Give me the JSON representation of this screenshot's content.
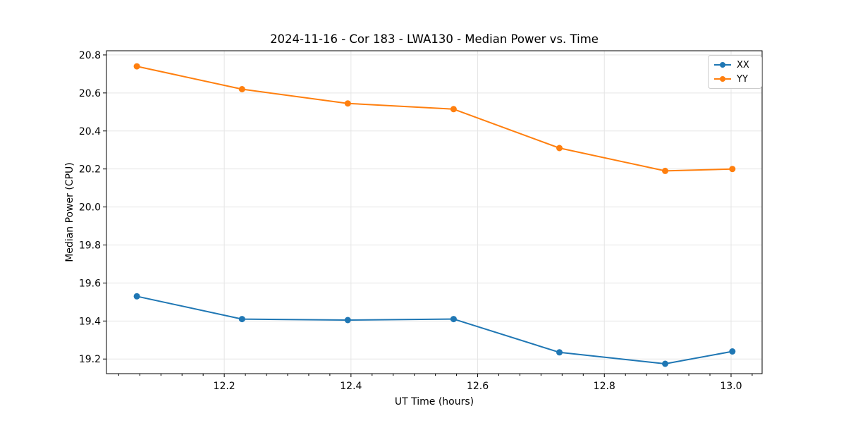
{
  "chart_data": {
    "type": "line",
    "title": "2024-11-16 - Cor 183 - LWA130 - Median Power vs. Time",
    "xlabel": "UT Time (hours)",
    "ylabel": "Median Power (CPU)",
    "x": [
      12.062,
      12.228,
      12.395,
      12.562,
      12.729,
      12.896,
      13.002
    ],
    "series": [
      {
        "name": "XX",
        "color": "#1f77b4",
        "values": [
          19.53,
          19.41,
          19.405,
          19.41,
          19.235,
          19.175,
          19.24
        ]
      },
      {
        "name": "YY",
        "color": "#ff7f0e",
        "values": [
          20.74,
          20.62,
          20.545,
          20.515,
          20.31,
          20.19,
          20.2
        ]
      }
    ],
    "xlim": [
      12.014,
      13.049
    ],
    "ylim": [
      19.123,
      20.822
    ],
    "x_ticks": [
      12.2,
      12.4,
      12.6,
      12.8,
      13.0
    ],
    "x_tick_labels": [
      "12.2",
      "12.4",
      "12.6",
      "12.8",
      "13.0"
    ],
    "x_minor_step": 0.0333333,
    "y_ticks": [
      19.2,
      19.4,
      19.6,
      19.8,
      20.0,
      20.2,
      20.4,
      20.6,
      20.8
    ],
    "y_tick_labels": [
      "19.2",
      "19.4",
      "19.6",
      "19.8",
      "20.0",
      "20.2",
      "20.4",
      "20.6",
      "20.8"
    ],
    "grid": true,
    "legend_position": "top-right",
    "legend": [
      "XX",
      "YY"
    ],
    "marker": "circle"
  },
  "style": {
    "grid_color": "#e5e5e5",
    "spine_color": "#000000",
    "tick_color": "#000000",
    "text_color": "#000000",
    "background": "#ffffff"
  }
}
